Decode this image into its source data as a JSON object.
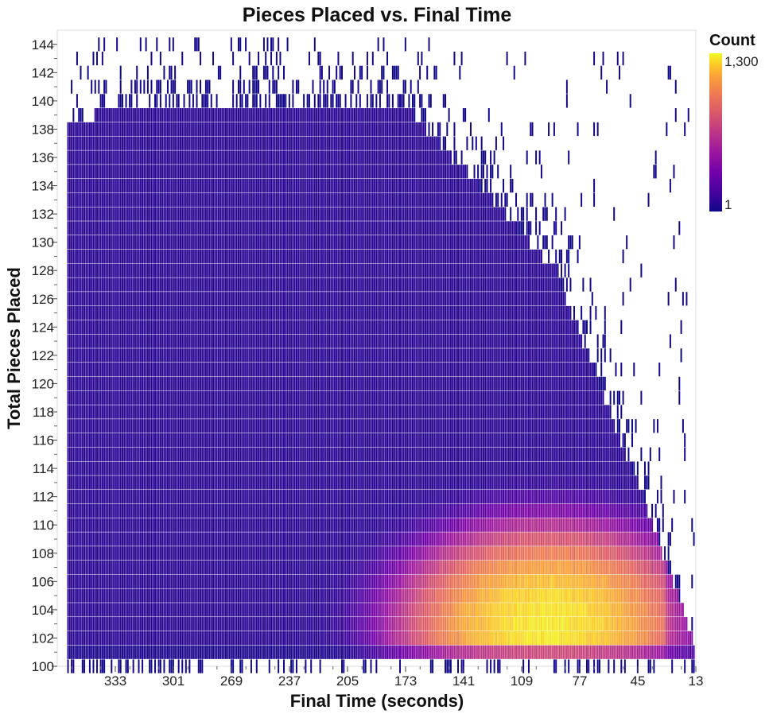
{
  "chart_data": {
    "type": "heatmap",
    "title": "Pieces Placed vs. Final Time",
    "xlabel": "Final Time (seconds)",
    "ylabel": "Total Pieces Placed",
    "x_axis": {
      "reversed": true,
      "range": [
        13,
        365
      ],
      "ticks": [
        333,
        301,
        269,
        237,
        205,
        173,
        141,
        109,
        77,
        45,
        13
      ],
      "tick_labels": [
        "333",
        "301",
        "269",
        "237",
        "205",
        "173",
        "141",
        "109",
        "77",
        "45",
        "13"
      ]
    },
    "y_axis": {
      "range": [
        100,
        145
      ],
      "ticks": [
        100,
        102,
        104,
        106,
        108,
        110,
        112,
        114,
        116,
        118,
        120,
        122,
        124,
        126,
        128,
        130,
        132,
        134,
        136,
        138,
        140,
        142,
        144
      ],
      "tick_labels": [
        "100",
        "102",
        "104",
        "106",
        "108",
        "110",
        "112",
        "114",
        "116",
        "118",
        "120",
        "122",
        "124",
        "126",
        "128",
        "130",
        "132",
        "134",
        "136",
        "138",
        "140",
        "142",
        "144"
      ]
    },
    "color_scale": {
      "name": "plasma",
      "scale": "log",
      "min": 1,
      "max": 1300,
      "legend_title": "Count",
      "legend_labels": [
        "1,300",
        "1"
      ],
      "legend_placement": "top-right",
      "stops": [
        "#0d0887",
        "#46039f",
        "#7201a8",
        "#9c179e",
        "#bd3786",
        "#d8576b",
        "#ed7953",
        "#fb9f3a",
        "#fdca26",
        "#f0f921"
      ]
    },
    "peak": {
      "time": 95,
      "pieces": 102,
      "count": 1300
    },
    "density_notes": "Counts concentrated along 102-106 pieces between roughly 150 and 55 seconds; upper boundary falls from ~140 pieces near 180 s to ~102 pieces near 13 s."
  }
}
